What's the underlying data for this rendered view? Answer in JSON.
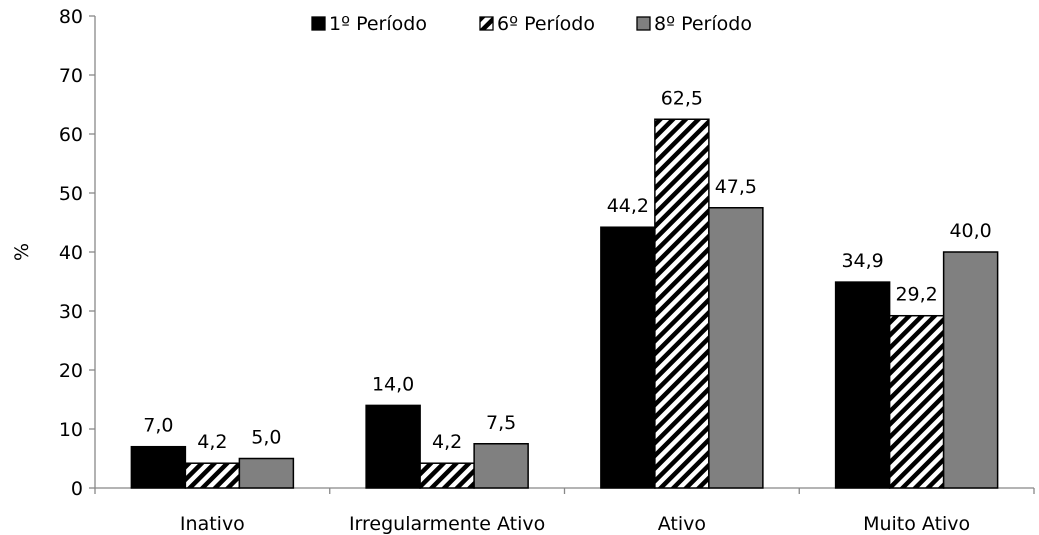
{
  "chart_data": {
    "type": "bar",
    "categories": [
      "Inativo",
      "Irregularmente Ativo",
      "Ativo",
      "Muito Ativo"
    ],
    "series": [
      {
        "name": "1º Período",
        "values": [
          7.0,
          14.0,
          44.2,
          34.9
        ],
        "labels": [
          "7,0",
          "14,0",
          "44,2",
          "34,9"
        ],
        "color": "#000000",
        "pattern": "solid"
      },
      {
        "name": "6º Período",
        "values": [
          4.2,
          4.2,
          62.5,
          29.2
        ],
        "labels": [
          "4,2",
          "4,2",
          "62,5",
          "29,2"
        ],
        "color": "#000000",
        "pattern": "hatch"
      },
      {
        "name": "8º Período",
        "values": [
          5.0,
          7.5,
          47.5,
          40.0
        ],
        "labels": [
          "5,0",
          "7,5",
          "47,5",
          "40,0"
        ],
        "color": "#808080",
        "pattern": "solid"
      }
    ],
    "ylabel": "%",
    "xlabel": "",
    "ylim": [
      0,
      80
    ],
    "yticks": [
      "0",
      "10",
      "20",
      "30",
      "40",
      "50",
      "60",
      "70",
      "80"
    ],
    "grid": false,
    "legend_position": "top"
  }
}
